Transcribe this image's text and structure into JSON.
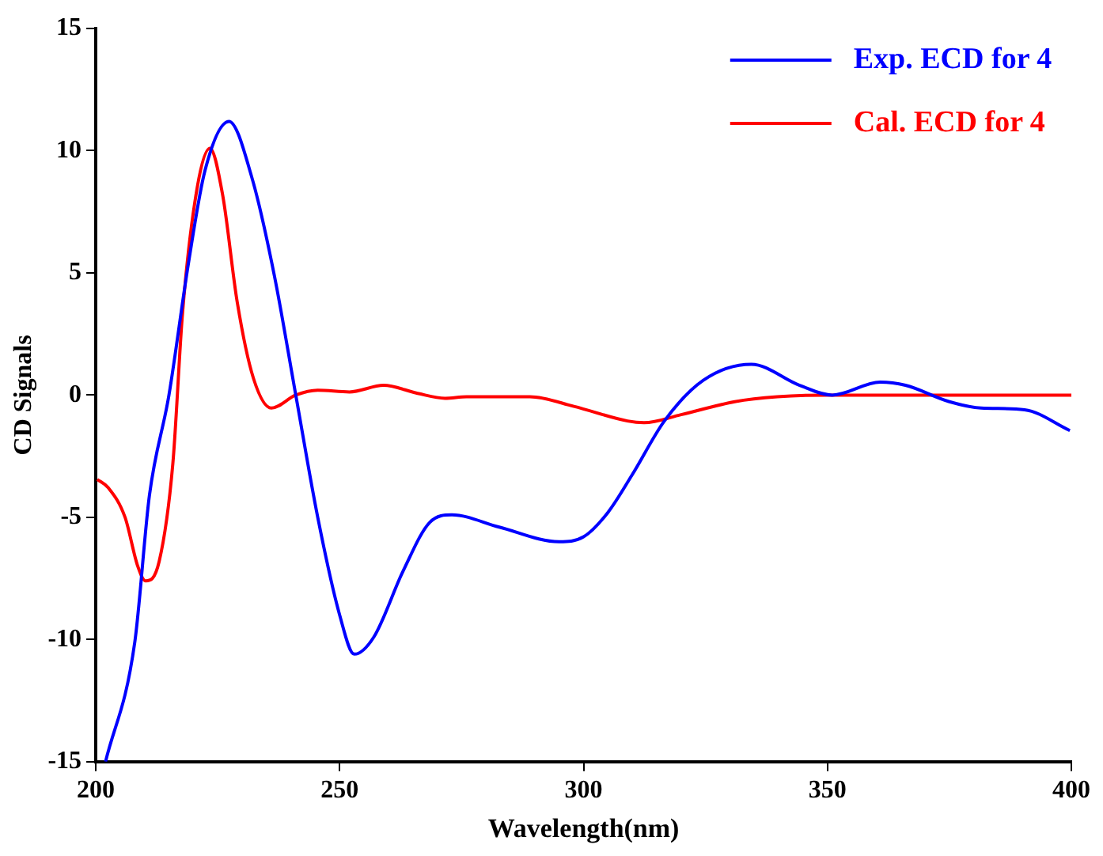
{
  "chart_data": {
    "type": "line",
    "xlabel": "Wavelength(nm)",
    "ylabel": "CD Signals",
    "xlim": [
      200,
      400
    ],
    "xticks": [
      200,
      250,
      300,
      350,
      400
    ],
    "ylim": [
      -15,
      15
    ],
    "yticks": [
      -15,
      -10,
      -5,
      0,
      5,
      10,
      15
    ],
    "grid": false,
    "legend": "top right",
    "marker": "none",
    "line_style": "solid",
    "series": [
      {
        "name": "Exp. ECD for 4",
        "color": "#0000ff",
        "x": [
          202,
          208,
          211,
          215,
          219,
          222.4,
          227.3,
          232,
          236.6,
          241,
          245.5,
          250,
          253,
          257,
          263,
          268.5,
          273,
          282.7,
          295,
          300,
          305,
          310,
          316.6,
          324.5,
          334.4,
          344.3,
          351,
          360.8,
          366,
          375,
          381.5,
          390.4,
          399.7
        ],
        "values": [
          -15,
          -10.1,
          -4.1,
          0,
          5.4,
          9.2,
          11.2,
          8.9,
          4.9,
          0,
          -5,
          -9,
          -10.6,
          -9.9,
          -7.2,
          -5.2,
          -4.9,
          -5.4,
          -6,
          -5.8,
          -4.8,
          -3.25,
          -1.05,
          0.6,
          1.26,
          0.4,
          0,
          0.53,
          0.4,
          -0.27,
          -0.53,
          -0.6,
          -1.45
        ]
      },
      {
        "name": "Cal. ECD for 4",
        "color": "#ff0000",
        "x": [
          200.3,
          202.6,
          206,
          208.6,
          210.2,
          213,
          215.8,
          217.8,
          220.8,
          223.4,
          226,
          229,
          232.3,
          236,
          241,
          245.5,
          252,
          259,
          266,
          271.6,
          276,
          280.4,
          289,
          298,
          309,
          312.4,
          320,
          331,
          339.7,
          350,
          400
        ],
        "values": [
          -3.45,
          -3.8,
          -5,
          -7,
          -7.6,
          -6.8,
          -2.8,
          3.4,
          8.5,
          10.1,
          8.2,
          3.8,
          0.7,
          -0.53,
          0,
          0.2,
          0.13,
          0.4,
          0.07,
          -0.13,
          -0.07,
          -0.07,
          -0.07,
          -0.46,
          -1.06,
          -1.13,
          -0.8,
          -0.27,
          -0.07,
          0,
          0
        ]
      }
    ]
  }
}
